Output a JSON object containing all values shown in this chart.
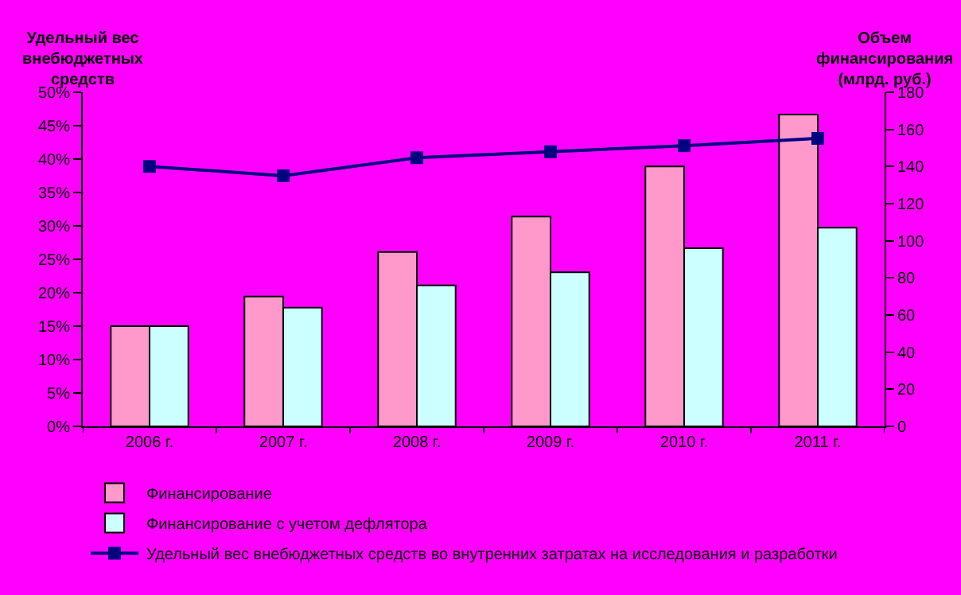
{
  "chart_data": {
    "type": "bar",
    "ylabel": "Удельный вес внебюджетных средств",
    "y2label": "Объем финансирования (млрд. руб.)",
    "categories": [
      "2006 г.",
      "2007 г.",
      "2008 г.",
      "2009 г.",
      "2010 г.",
      "2011 г."
    ],
    "series": [
      {
        "name": "Финансирование",
        "axis": "y2",
        "color": "#ff99cc",
        "values": [
          54,
          70,
          94,
          113,
          140,
          168
        ]
      },
      {
        "name": "Финансирование с учетом дефлятора",
        "axis": "y2",
        "color": "#ccffff",
        "values": [
          54,
          64,
          76,
          83,
          96,
          107
        ]
      },
      {
        "name": "Удельный вес внебюджетных средств во внутренних затратах на исследования и разработки",
        "type": "line",
        "axis": "y",
        "color": "#000080",
        "marker": "square",
        "values": [
          38.9,
          37.5,
          40.2,
          41.1,
          42.0,
          43.1
        ]
      }
    ],
    "ylim": [
      0,
      50
    ],
    "yticks": [
      {
        "value": 0,
        "label": "0%"
      },
      {
        "value": 5,
        "label": "5%"
      },
      {
        "value": 10,
        "label": "10%"
      },
      {
        "value": 15,
        "label": "15%"
      },
      {
        "value": 20,
        "label": "20%"
      },
      {
        "value": 25,
        "label": "25%"
      },
      {
        "value": 30,
        "label": "30%"
      },
      {
        "value": 35,
        "label": "35%"
      },
      {
        "value": 40,
        "label": "40%"
      },
      {
        "value": 45,
        "label": "45%"
      },
      {
        "value": 50,
        "label": "50%"
      }
    ],
    "y2lim": [
      0,
      180
    ],
    "y2ticks": [
      0,
      20,
      40,
      60,
      80,
      100,
      120,
      140,
      160,
      180
    ],
    "grid": false,
    "legend": "bottom"
  }
}
